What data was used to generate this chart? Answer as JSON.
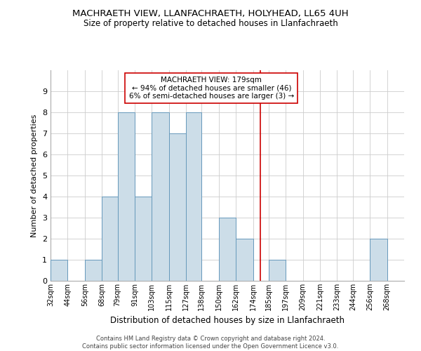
{
  "title": "MACHRAETH VIEW, LLANFACHRAETH, HOLYHEAD, LL65 4UH",
  "subtitle": "Size of property relative to detached houses in Llanfachraeth",
  "xlabel": "Distribution of detached houses by size in Llanfachraeth",
  "ylabel": "Number of detached properties",
  "bin_labels": [
    "32sqm",
    "44sqm",
    "56sqm",
    "68sqm",
    "79sqm",
    "91sqm",
    "103sqm",
    "115sqm",
    "127sqm",
    "138sqm",
    "150sqm",
    "162sqm",
    "174sqm",
    "185sqm",
    "197sqm",
    "209sqm",
    "221sqm",
    "233sqm",
    "244sqm",
    "256sqm",
    "268sqm"
  ],
  "bin_edges": [
    32,
    44,
    56,
    68,
    79,
    91,
    103,
    115,
    127,
    138,
    150,
    162,
    174,
    185,
    197,
    209,
    221,
    233,
    244,
    256,
    268
  ],
  "bar_heights": [
    1,
    0,
    1,
    4,
    8,
    4,
    8,
    7,
    8,
    0,
    3,
    2,
    0,
    1,
    0,
    0,
    0,
    0,
    0,
    2,
    0
  ],
  "bar_color": "#ccdde8",
  "bar_edge_color": "#6699bb",
  "grid_color": "#cccccc",
  "ref_line_x": 179,
  "ref_line_color": "#cc0000",
  "annotation_text": "MACHRAETH VIEW: 179sqm\n← 94% of detached houses are smaller (46)\n6% of semi-detached houses are larger (3) →",
  "annotation_box_color": "#ffffff",
  "annotation_box_edge": "#cc0000",
  "ylim": [
    0,
    10
  ],
  "yticks": [
    0,
    1,
    2,
    3,
    4,
    5,
    6,
    7,
    8,
    9,
    10
  ],
  "footnote": "Contains HM Land Registry data © Crown copyright and database right 2024.\nContains public sector information licensed under the Open Government Licence v3.0.",
  "figsize": [
    6.0,
    5.0
  ],
  "dpi": 100
}
